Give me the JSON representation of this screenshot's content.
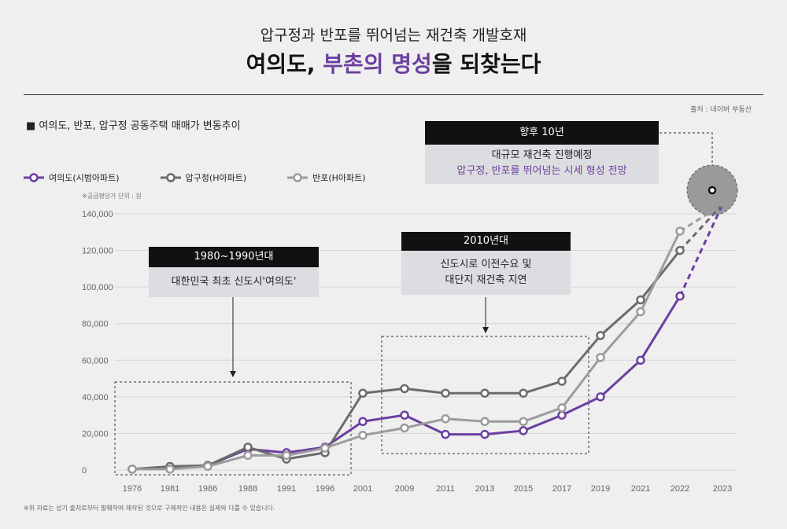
{
  "header": {
    "line1": "압구정과 반포를 뛰어넘는 재건축 개발호재",
    "line2_pre": "여의도, ",
    "line2_highlight": "부촌의 명성",
    "line2_post": "을 되찾는다"
  },
  "source": "출처 : 네이버 부동산",
  "subtitle": "■ 여의도, 반포, 압구정 공동주택 매매가 변동추이",
  "unit_note": "※공급평당가 단위 : 원",
  "footnote": "※위 자료는 상기 출처로부터 발췌하여 제작된 것으로 구체적인 내용은 실제와 다를 수 있습니다.",
  "annotations": {
    "a1980": {
      "header": "1980~1990년대",
      "body": "대한민국 최초 신도시'여의도'"
    },
    "a2010": {
      "header": "2010년대",
      "body1": "신도시로 이전수요 및",
      "body2": "대단지 재건축 지연"
    },
    "a_future": {
      "header": "향후 10년",
      "body1": "대규모 재건축 진행예정",
      "body2": "압구정, 반포를 뛰어넘는 시세 형성 전망"
    }
  },
  "colors": {
    "yeouido": "#6b3fa0",
    "apgujeong": "#6b6b6b",
    "banpo": "#9c9c9c",
    "highlight": "#6b3fa0"
  },
  "chart_data": {
    "type": "line",
    "categories": [
      "1976",
      "1981",
      "1986",
      "1988",
      "1991",
      "1996",
      "2001",
      "2009",
      "2011",
      "2013",
      "2015",
      "2017",
      "2019",
      "2021",
      "2022",
      "2023"
    ],
    "ylim": [
      0,
      140000
    ],
    "yticks": [
      "0",
      "20,000",
      "40,000",
      "60,000",
      "80,000",
      "100,000",
      "120,000",
      "140,000"
    ],
    "ytick_values": [
      0,
      20000,
      40000,
      60000,
      80000,
      100000,
      120000,
      140000
    ],
    "grid": true,
    "series": [
      {
        "name": "여의도(시범아파트)",
        "key": "yeouido",
        "values": [
          500,
          1500,
          2500,
          11500,
          9500,
          12500,
          26500,
          30000,
          19500,
          19500,
          21500,
          30000,
          40000,
          60000,
          95000,
          145000
        ]
      },
      {
        "name": "압구정(H아파트)",
        "key": "apgujeong",
        "values": [
          500,
          2000,
          2500,
          12500,
          6000,
          9500,
          42000,
          44500,
          42000,
          42000,
          42000,
          48500,
          73500,
          93000,
          120000,
          145000
        ]
      },
      {
        "name": "반포(H아파트)",
        "key": "banpo",
        "values": [
          500,
          500,
          2000,
          8000,
          8000,
          12000,
          19000,
          23000,
          28000,
          26500,
          26500,
          34000,
          61500,
          86500,
          130500,
          145000
        ]
      }
    ],
    "projected_from_index": 14
  }
}
